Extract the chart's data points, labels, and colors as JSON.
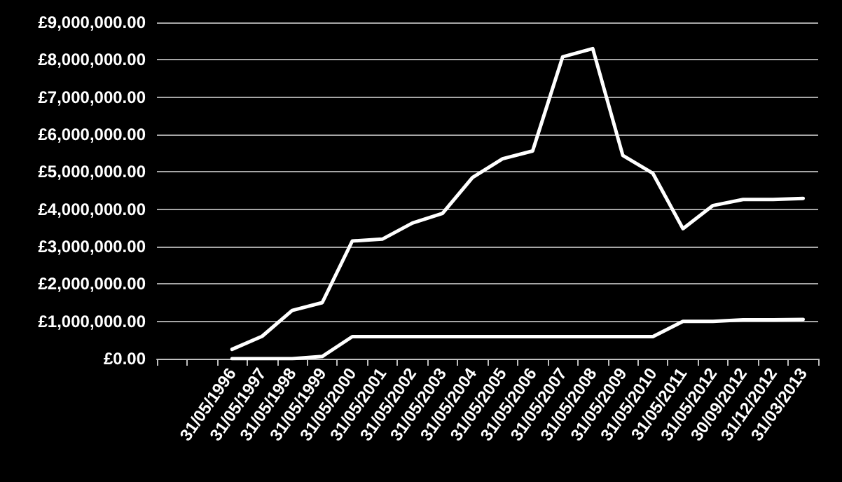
{
  "chart_data": {
    "type": "line",
    "categories": [
      null,
      null,
      "31/05/1996",
      "31/05/1997",
      "31/05/1998",
      "31/05/1999",
      "31/05/2000",
      "31/05/2001",
      "31/05/2002",
      "31/05/2003",
      "31/05/2004",
      "31/05/2005",
      "31/05/2006",
      "31/05/2007",
      "31/05/2008",
      "31/05/2009",
      "31/05/2010",
      "31/05/2011",
      "31/05/2012",
      "30/09/2012",
      "31/12/2012",
      "31/03/2013"
    ],
    "series": [
      {
        "color": "#ffffff",
        "values": [
          null,
          null,
          250000,
          600000,
          1290000,
          1500000,
          3150000,
          3200000,
          3630000,
          3890000,
          4850000,
          5350000,
          5560000,
          8080000,
          8300000,
          5440000,
          4960000,
          3480000,
          4100000,
          4260000,
          4260000,
          4290000
        ]
      },
      {
        "color": "#ffffff",
        "values": [
          null,
          null,
          0,
          0,
          0,
          60000,
          590000,
          590000,
          590000,
          590000,
          590000,
          590000,
          590000,
          590000,
          590000,
          590000,
          590000,
          1000000,
          1000000,
          1040000,
          1040000,
          1050000
        ]
      }
    ],
    "ylim": [
      0,
      9000000
    ],
    "yticks": [
      {
        "value": 0,
        "label": "£0.00"
      },
      {
        "value": 1000000,
        "label": "£1,000,000.00"
      },
      {
        "value": 2000000,
        "label": "£2,000,000.00"
      },
      {
        "value": 3000000,
        "label": "£3,000,000.00"
      },
      {
        "value": 4000000,
        "label": "£4,000,000.00"
      },
      {
        "value": 5000000,
        "label": "£5,000,000.00"
      },
      {
        "value": 6000000,
        "label": "£6,000,000.00"
      },
      {
        "value": 7000000,
        "label": "£7,000,000.00"
      },
      {
        "value": 8000000,
        "label": "£8,000,000.00"
      },
      {
        "value": 9000000,
        "label": "£9,000,000.00"
      }
    ],
    "grid": "y",
    "marker": "none",
    "line_style": "solid"
  }
}
